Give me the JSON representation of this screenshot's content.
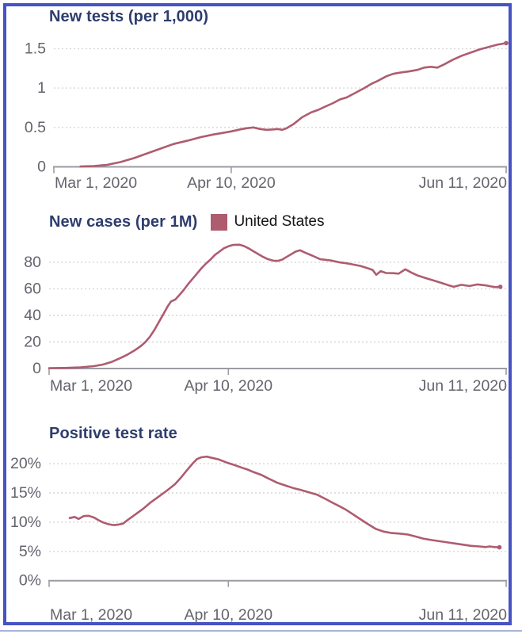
{
  "colors": {
    "series": "#ae5c70",
    "title": "#2d3d6d",
    "axis_text": "#64646e",
    "axis_line": "#9b9ba3",
    "grid": "#d6d6dc",
    "panel_border": "#4553c4",
    "legend_text": "#15151a",
    "bottom_rule": "#a8b2d8"
  },
  "chart_data": [
    {
      "type": "line",
      "title": "New tests (per 1,000)",
      "xlabel": "",
      "ylabel": "",
      "xlim": [
        0,
        102
      ],
      "x_unit": "days since Mar 1, 2020",
      "x_ticks": [
        {
          "pos": 0,
          "label": "Mar 1, 2020"
        },
        {
          "pos": 40,
          "label": "Apr 10, 2020"
        },
        {
          "pos": 102,
          "label": "Jun 11, 2020"
        }
      ],
      "y_ticks": [
        0,
        0.5,
        1,
        1.5
      ],
      "y_tick_labels": [
        "0",
        "0.5",
        "1",
        "1.5"
      ],
      "grid": "horizontal-dotted",
      "legend": null,
      "series": [
        {
          "name": "United States",
          "points": [
            [
              6,
              0.005
            ],
            [
              9,
              0.01
            ],
            [
              12,
              0.025
            ],
            [
              15,
              0.06
            ],
            [
              18,
              0.11
            ],
            [
              21,
              0.17
            ],
            [
              24,
              0.23
            ],
            [
              27,
              0.29
            ],
            [
              30,
              0.33
            ],
            [
              33,
              0.375
            ],
            [
              36,
              0.41
            ],
            [
              38,
              0.43
            ],
            [
              40,
              0.45
            ],
            [
              42,
              0.475
            ],
            [
              43.5,
              0.49
            ],
            [
              45,
              0.5
            ],
            [
              46.5,
              0.48
            ],
            [
              48,
              0.47
            ],
            [
              49.5,
              0.475
            ],
            [
              50.5,
              0.48
            ],
            [
              51.5,
              0.47
            ],
            [
              52.5,
              0.49
            ],
            [
              54,
              0.54
            ],
            [
              56,
              0.63
            ],
            [
              58,
              0.69
            ],
            [
              59.5,
              0.72
            ],
            [
              61,
              0.76
            ],
            [
              63,
              0.81
            ],
            [
              64.5,
              0.855
            ],
            [
              66,
              0.88
            ],
            [
              68,
              0.94
            ],
            [
              70,
              1.0
            ],
            [
              71.5,
              1.05
            ],
            [
              73,
              1.09
            ],
            [
              75,
              1.15
            ],
            [
              76.5,
              1.18
            ],
            [
              78,
              1.195
            ],
            [
              80,
              1.21
            ],
            [
              82,
              1.23
            ],
            [
              83.5,
              1.26
            ],
            [
              85,
              1.27
            ],
            [
              86.5,
              1.26
            ],
            [
              88,
              1.3
            ],
            [
              90,
              1.36
            ],
            [
              92,
              1.41
            ],
            [
              94,
              1.45
            ],
            [
              96,
              1.49
            ],
            [
              98,
              1.52
            ],
            [
              100,
              1.55
            ],
            [
              101.5,
              1.565
            ],
            [
              102,
              1.57
            ]
          ]
        }
      ]
    },
    {
      "type": "line",
      "title": "New cases (per 1M)",
      "xlabel": "",
      "ylabel": "",
      "xlim": [
        0,
        102
      ],
      "x_unit": "days since Mar 1, 2020",
      "x_ticks": [
        {
          "pos": 0,
          "label": "Mar 1, 2020"
        },
        {
          "pos": 40,
          "label": "Apr 10, 2020"
        },
        {
          "pos": 102,
          "label": "Jun 11, 2020"
        }
      ],
      "y_ticks": [
        0,
        20,
        40,
        60,
        80
      ],
      "y_tick_labels": [
        "0",
        "20",
        "40",
        "60",
        "80"
      ],
      "grid": "horizontal-dotted",
      "legend": {
        "label": "United States",
        "swatch_color": "#ae5c70",
        "position": "top-right-of-title"
      },
      "series": [
        {
          "name": "United States",
          "points": [
            [
              0,
              0.3
            ],
            [
              4,
              0.5
            ],
            [
              7,
              0.9
            ],
            [
              10,
              1.8
            ],
            [
              12,
              3
            ],
            [
              14,
              5
            ],
            [
              16,
              8
            ],
            [
              17.5,
              10.5
            ],
            [
              19,
              13.5
            ],
            [
              20.5,
              17
            ],
            [
              21.5,
              20
            ],
            [
              22.5,
              24
            ],
            [
              23.5,
              29
            ],
            [
              24.5,
              35
            ],
            [
              25.5,
              41
            ],
            [
              26.5,
              47
            ],
            [
              27.2,
              50.5
            ],
            [
              28.2,
              52
            ],
            [
              29,
              55
            ],
            [
              30,
              59
            ],
            [
              31,
              63.5
            ],
            [
              32,
              67.5
            ],
            [
              33,
              71.5
            ],
            [
              34,
              75.5
            ],
            [
              35,
              79
            ],
            [
              36,
              82
            ],
            [
              37,
              85.5
            ],
            [
              38,
              88
            ],
            [
              39,
              90.5
            ],
            [
              40,
              92
            ],
            [
              41,
              93
            ],
            [
              42.5,
              93.2
            ],
            [
              43.5,
              92.2
            ],
            [
              44.5,
              90.5
            ],
            [
              45.5,
              88.5
            ],
            [
              46.5,
              86.5
            ],
            [
              47.5,
              84.5
            ],
            [
              48.7,
              82.5
            ],
            [
              50,
              81.2
            ],
            [
              51,
              81
            ],
            [
              52,
              82
            ],
            [
              53,
              84
            ],
            [
              54,
              86
            ],
            [
              55,
              88
            ],
            [
              56,
              89
            ],
            [
              57,
              87.5
            ],
            [
              58.7,
              85
            ],
            [
              60.5,
              82.3
            ],
            [
              62.9,
              81.3
            ],
            [
              64.7,
              80
            ],
            [
              66.5,
              79.2
            ],
            [
              67.7,
              78.4
            ],
            [
              69.5,
              77.2
            ],
            [
              71,
              75.6
            ],
            [
              72.2,
              74.2
            ],
            [
              73,
              70.6
            ],
            [
              74,
              73.3
            ],
            [
              75.2,
              71.9
            ],
            [
              76.8,
              71.8
            ],
            [
              78,
              71.4
            ],
            [
              79.5,
              74.7
            ],
            [
              80.8,
              72.3
            ],
            [
              82.3,
              69.9
            ],
            [
              84.3,
              67.8
            ],
            [
              86,
              66.1
            ],
            [
              87.9,
              64.1
            ],
            [
              89,
              62.8
            ],
            [
              90.3,
              61.5
            ],
            [
              92,
              63
            ],
            [
              93.8,
              62.1
            ],
            [
              95.6,
              63.3
            ],
            [
              97.2,
              62.7
            ],
            [
              98.6,
              61.8
            ],
            [
              99.6,
              61.3
            ],
            [
              100.7,
              61.5
            ]
          ]
        }
      ]
    },
    {
      "type": "line",
      "title": "Positive test rate",
      "xlabel": "",
      "ylabel": "",
      "xlim": [
        0,
        102
      ],
      "x_unit": "days since Mar 1, 2020",
      "x_ticks": [
        {
          "pos": 0,
          "label": "Mar 1, 2020"
        },
        {
          "pos": 40,
          "label": "Apr 10, 2020"
        },
        {
          "pos": 102,
          "label": "Jun 11, 2020"
        }
      ],
      "y_ticks": [
        0,
        5,
        10,
        15,
        20
      ],
      "y_tick_labels": [
        "0%",
        "5%",
        "10%",
        "15%",
        "20%"
      ],
      "grid": "horizontal-dotted",
      "legend": null,
      "series": [
        {
          "name": "United States",
          "points": [
            [
              4.6,
              10.7
            ],
            [
              5.7,
              10.9
            ],
            [
              6.6,
              10.55
            ],
            [
              7.7,
              11.05
            ],
            [
              8.8,
              11.1
            ],
            [
              10,
              10.8
            ],
            [
              11,
              10.35
            ],
            [
              12.1,
              9.95
            ],
            [
              13.3,
              9.65
            ],
            [
              14.4,
              9.5
            ],
            [
              15.5,
              9.6
            ],
            [
              16.5,
              9.75
            ],
            [
              17.4,
              10.3
            ],
            [
              19.2,
              11.3
            ],
            [
              21,
              12.3
            ],
            [
              22.7,
              13.4
            ],
            [
              24.5,
              14.4
            ],
            [
              26.3,
              15.4
            ],
            [
              28.1,
              16.5
            ],
            [
              29.5,
              17.7
            ],
            [
              31,
              19.1
            ],
            [
              32,
              20
            ],
            [
              33,
              20.8
            ],
            [
              34,
              21.1
            ],
            [
              35.2,
              21.2
            ],
            [
              36.3,
              21
            ],
            [
              37.8,
              20.75
            ],
            [
              39.6,
              20.2
            ],
            [
              41.4,
              19.75
            ],
            [
              43.1,
              19.3
            ],
            [
              44.3,
              19
            ],
            [
              45.5,
              18.6
            ],
            [
              47.3,
              18.1
            ],
            [
              49,
              17.45
            ],
            [
              50.9,
              16.75
            ],
            [
              52.6,
              16.3
            ],
            [
              54.4,
              15.85
            ],
            [
              56.2,
              15.5
            ],
            [
              58,
              15.1
            ],
            [
              59.8,
              14.7
            ],
            [
              61.6,
              14
            ],
            [
              63.3,
              13.3
            ],
            [
              65.1,
              12.6
            ],
            [
              66.3,
              12.1
            ],
            [
              67.7,
              11.4
            ],
            [
              69.3,
              10.6
            ],
            [
              71.1,
              9.7
            ],
            [
              72.9,
              8.85
            ],
            [
              74.6,
              8.4
            ],
            [
              76.4,
              8.15
            ],
            [
              78.2,
              8.05
            ],
            [
              80,
              7.9
            ],
            [
              81.8,
              7.55
            ],
            [
              83.5,
              7.2
            ],
            [
              85.3,
              6.95
            ],
            [
              87.1,
              6.75
            ],
            [
              88.9,
              6.55
            ],
            [
              90.6,
              6.35
            ],
            [
              92.4,
              6.15
            ],
            [
              94.2,
              5.95
            ],
            [
              96,
              5.85
            ],
            [
              97.4,
              5.75
            ],
            [
              98.3,
              5.85
            ],
            [
              99.4,
              5.75
            ],
            [
              100.5,
              5.7
            ]
          ]
        }
      ]
    }
  ]
}
